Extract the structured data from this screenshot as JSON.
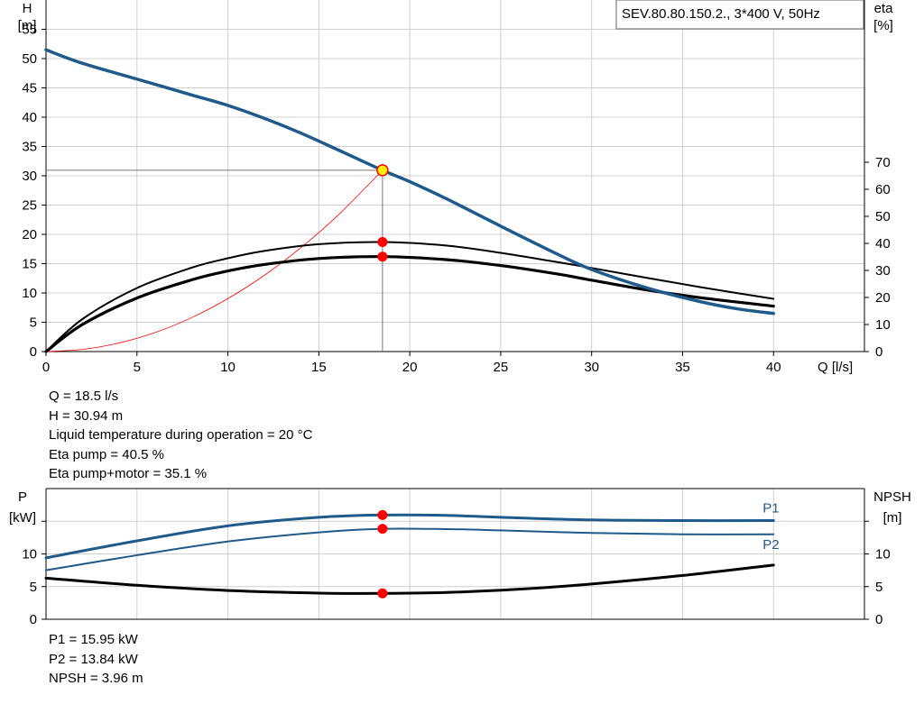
{
  "colors": {
    "head_curve": "#1f5a8c",
    "eta_curves": "#000000",
    "power_curves": "#1f5a8c",
    "npsh_curve": "#000000",
    "system_curve": "#ff0000",
    "marker": "#ff0000",
    "duty_marker_fill": "#ffee00",
    "grid": "#d0d0d0"
  },
  "chart_data": [
    {
      "type": "line",
      "legend_box": "SEV.80.80.150.2., 3*400 V, 50Hz",
      "xlabel": "Q [l/s]",
      "ylabel": [
        "H",
        "[m]"
      ],
      "y2label": [
        "eta",
        "[%]"
      ],
      "xlim": [
        0,
        45
      ],
      "ylim": [
        0,
        60
      ],
      "y2lim": [
        0,
        70
      ],
      "x_ticks": [
        0,
        5,
        10,
        15,
        20,
        25,
        30,
        35,
        40
      ],
      "y_ticks": [
        0,
        5,
        10,
        15,
        20,
        25,
        30,
        35,
        40,
        45,
        50,
        55
      ],
      "y2_ticks": [
        0,
        10,
        20,
        30,
        40,
        50,
        60,
        70
      ],
      "grid": true,
      "duty_point": {
        "q": 18.5,
        "h": 30.94
      },
      "series": [
        {
          "key": "H",
          "axis": "y",
          "x": [
            0,
            2,
            5,
            8,
            10,
            12,
            14,
            16,
            18.5,
            20,
            22,
            25,
            28,
            30,
            33,
            36,
            38,
            40
          ],
          "values": [
            51.5,
            49.2,
            46.5,
            43.8,
            42.0,
            39.8,
            37.3,
            34.5,
            30.94,
            29.0,
            26.1,
            21.4,
            16.8,
            14.0,
            10.9,
            8.5,
            7.3,
            6.5
          ]
        },
        {
          "key": "eta_pump",
          "axis": "y2",
          "x": [
            0,
            2,
            5,
            8,
            10,
            12,
            15,
            18.5,
            22,
            25,
            28,
            30,
            33,
            36,
            40
          ],
          "values": [
            0,
            12,
            23.5,
            31,
            34.5,
            37.2,
            39.7,
            40.5,
            39.2,
            36.5,
            33.2,
            30.9,
            27.3,
            23.8,
            19.5
          ]
        },
        {
          "key": "eta_total",
          "axis": "y2",
          "x": [
            0,
            2,
            5,
            8,
            10,
            12,
            15,
            18.5,
            22,
            25,
            28,
            30,
            33,
            36,
            40
          ],
          "values": [
            0,
            10,
            19.8,
            26.5,
            29.8,
            32.2,
            34.4,
            35.1,
            34.0,
            31.8,
            28.8,
            26.4,
            22.8,
            19.9,
            16.8
          ]
        },
        {
          "key": "system",
          "axis": "y",
          "x": [
            0,
            2,
            4,
            6,
            8,
            10,
            12,
            14,
            16,
            18.5
          ],
          "values": [
            0,
            0.36,
            1.45,
            3.25,
            5.78,
            9.04,
            13.0,
            17.7,
            23.1,
            30.94
          ]
        }
      ],
      "markers": [
        {
          "x": 18.5,
          "axis": "y",
          "value": 30.94,
          "kind": "duty"
        },
        {
          "x": 18.5,
          "axis": "y2",
          "value": 40.5,
          "kind": "point"
        },
        {
          "x": 18.5,
          "axis": "y2",
          "value": 35.1,
          "kind": "point"
        }
      ]
    },
    {
      "type": "line",
      "ylabel": [
        "P",
        "[kW]"
      ],
      "y2label": [
        "NPSH",
        "[m]"
      ],
      "xlim": [
        0,
        45
      ],
      "ylim": [
        0,
        20
      ],
      "y_ticks": [
        0,
        5,
        10
      ],
      "y2_ticks": [
        0,
        5,
        10
      ],
      "grid": true,
      "series": [
        {
          "key": "P1",
          "name": "P1",
          "x": [
            0,
            5,
            10,
            15,
            18.5,
            22,
            25,
            30,
            35,
            40
          ],
          "values": [
            9.4,
            12.0,
            14.3,
            15.6,
            15.95,
            15.9,
            15.6,
            15.2,
            15.1,
            15.1
          ]
        },
        {
          "key": "P2",
          "name": "P2",
          "x": [
            0,
            5,
            10,
            15,
            18.5,
            22,
            25,
            30,
            35,
            40
          ],
          "values": [
            7.5,
            9.8,
            11.9,
            13.3,
            13.84,
            13.8,
            13.6,
            13.2,
            13.0,
            13.0
          ]
        },
        {
          "key": "NPSH",
          "x": [
            0,
            5,
            10,
            15,
            18.5,
            22,
            26,
            30,
            35,
            40
          ],
          "values": [
            6.3,
            5.2,
            4.4,
            4.0,
            3.96,
            4.1,
            4.6,
            5.4,
            6.7,
            8.3
          ]
        }
      ],
      "markers": [
        {
          "x": 18.5,
          "value": 15.95
        },
        {
          "x": 18.5,
          "value": 13.84
        },
        {
          "x": 18.5,
          "value": 3.96
        }
      ]
    }
  ],
  "info_top": {
    "q": "Q = 18.5 l/s",
    "h": "H = 30.94 m",
    "temp": "Liquid temperature during operation = 20 °C",
    "eta_pump": "Eta pump = 40.5 %",
    "eta_total": "Eta pump+motor = 35.1 %"
  },
  "info_bottom": {
    "p1": "P1 = 15.95 kW",
    "p2": "P2 = 13.84 kW",
    "npsh": "NPSH = 3.96 m"
  }
}
